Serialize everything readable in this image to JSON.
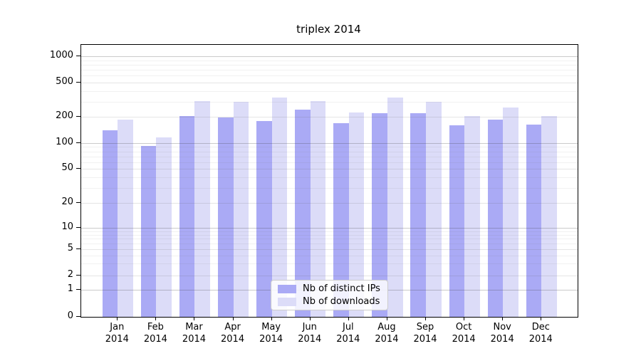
{
  "chart_data": {
    "type": "bar",
    "title": "triplex 2014",
    "categories": [
      "Jan 2014",
      "Feb 2014",
      "Mar 2014",
      "Apr 2014",
      "May 2014",
      "Jun 2014",
      "Jul 2014",
      "Aug 2014",
      "Sep 2014",
      "Oct 2014",
      "Nov 2014",
      "Dec 2014"
    ],
    "series": [
      {
        "name": "Nb of distinct IPs",
        "color_key": "ips",
        "values": [
          140,
          93,
          203,
          196,
          180,
          244,
          169,
          222,
          218,
          160,
          186,
          162
        ]
      },
      {
        "name": "Nb of downloads",
        "color_key": "downloads",
        "values": [
          185,
          116,
          305,
          299,
          334,
          305,
          225,
          335,
          297,
          202,
          255,
          202
        ]
      }
    ],
    "y_ticks": [
      0,
      1,
      2,
      5,
      10,
      20,
      50,
      100,
      200,
      500,
      1000
    ],
    "y_scale": "log-like with zero baseline",
    "ylim": [
      0,
      1400
    ],
    "xlabel": "",
    "ylabel": "",
    "grid": "on",
    "legend_position": "bottom-center-inside"
  },
  "colors": {
    "ips": "#aaaaf5",
    "downloads": "#dcdcf8",
    "spine": "#000000",
    "grid_major": "#bcbcbc",
    "grid_mid": "#d7d7d7",
    "grid_minor": "#e8e8e8",
    "background": "#ffffff"
  }
}
